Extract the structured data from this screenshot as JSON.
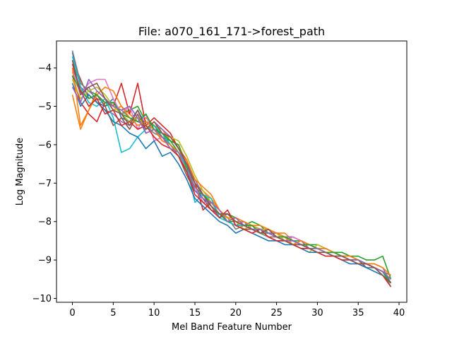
{
  "chart_data": {
    "type": "line",
    "title": "File: a070_161_171->forest_path",
    "xlabel": "Mel Band Feature Number",
    "ylabel": "Log Magnitude",
    "xlim": [
      -1.95,
      40.95
    ],
    "ylim": [
      -10.1,
      -3.3
    ],
    "xticks": [
      0,
      5,
      10,
      15,
      20,
      25,
      30,
      35,
      40
    ],
    "yticks": [
      -10,
      -9,
      -8,
      -7,
      -6,
      -5,
      -4
    ],
    "grid": false,
    "legend": "none",
    "colors": [
      "#1f77b4",
      "#ff7f0e",
      "#2ca02c",
      "#d62728",
      "#9467bd",
      "#8c564b",
      "#e377c2",
      "#7f7f7f",
      "#bcbd22",
      "#17becf"
    ],
    "x": [
      0,
      1,
      2,
      3,
      4,
      5,
      6,
      7,
      8,
      9,
      10,
      11,
      12,
      13,
      14,
      15,
      16,
      17,
      18,
      19,
      20,
      21,
      22,
      23,
      24,
      25,
      26,
      27,
      28,
      29,
      30,
      31,
      32,
      33,
      34,
      35,
      36,
      37,
      38,
      39
    ],
    "series": [
      {
        "values": [
          -3.6,
          -4.5,
          -4.7,
          -4.9,
          -5.0,
          -4.8,
          -5.3,
          -5.4,
          -5.1,
          -5.5,
          -5.6,
          -5.7,
          -6.0,
          -6.2,
          -6.6,
          -7.1,
          -7.4,
          -7.6,
          -7.9,
          -7.8,
          -8.0,
          -8.1,
          -8.1,
          -8.2,
          -8.2,
          -8.3,
          -8.4,
          -8.4,
          -8.5,
          -8.6,
          -8.7,
          -8.7,
          -8.8,
          -8.8,
          -8.9,
          -9.0,
          -9.1,
          -9.2,
          -9.3,
          -9.6
        ]
      },
      {
        "values": [
          -4.7,
          -5.6,
          -5.1,
          -4.6,
          -4.8,
          -5.1,
          -5.0,
          -5.2,
          -5.4,
          -5.3,
          -5.5,
          -5.6,
          -5.9,
          -6.0,
          -6.5,
          -7.0,
          -7.2,
          -7.4,
          -7.7,
          -7.9,
          -8.0,
          -8.0,
          -8.1,
          -8.2,
          -8.2,
          -8.3,
          -8.3,
          -8.5,
          -8.6,
          -8.6,
          -8.7,
          -8.7,
          -8.8,
          -8.9,
          -8.9,
          -9.0,
          -9.1,
          -9.2,
          -9.3,
          -9.5
        ]
      },
      {
        "values": [
          -3.9,
          -4.4,
          -4.6,
          -4.7,
          -5.0,
          -4.9,
          -5.2,
          -5.1,
          -5.0,
          -5.4,
          -5.5,
          -5.8,
          -5.9,
          -6.2,
          -6.7,
          -7.2,
          -7.3,
          -7.5,
          -7.8,
          -7.8,
          -7.9,
          -8.1,
          -8.0,
          -8.1,
          -8.3,
          -8.3,
          -8.4,
          -8.5,
          -8.5,
          -8.6,
          -8.6,
          -8.7,
          -8.8,
          -8.8,
          -8.9,
          -8.9,
          -9.0,
          -9.0,
          -8.9,
          -9.5
        ]
      },
      {
        "values": [
          -4.2,
          -4.9,
          -5.2,
          -5.4,
          -4.9,
          -5.0,
          -4.4,
          -5.2,
          -4.4,
          -5.5,
          -5.3,
          -5.5,
          -5.7,
          -6.1,
          -6.4,
          -7.0,
          -7.7,
          -7.5,
          -7.8,
          -8.0,
          -8.1,
          -8.2,
          -8.1,
          -8.3,
          -8.2,
          -8.4,
          -8.4,
          -8.5,
          -8.6,
          -8.6,
          -8.7,
          -8.8,
          -8.8,
          -8.9,
          -8.9,
          -9.0,
          -9.1,
          -9.2,
          -9.3,
          -9.6
        ]
      },
      {
        "values": [
          -4.0,
          -4.6,
          -4.5,
          -4.9,
          -5.1,
          -5.2,
          -5.4,
          -5.5,
          -5.3,
          -5.6,
          -5.4,
          -5.6,
          -5.8,
          -6.1,
          -6.5,
          -6.9,
          -7.3,
          -7.6,
          -7.9,
          -8.0,
          -8.1,
          -8.0,
          -8.2,
          -8.2,
          -8.3,
          -8.3,
          -8.4,
          -8.4,
          -8.5,
          -8.7,
          -8.7,
          -8.8,
          -8.8,
          -8.9,
          -8.9,
          -9.0,
          -9.1,
          -9.1,
          -9.2,
          -9.6
        ]
      },
      {
        "values": [
          -3.8,
          -4.3,
          -4.8,
          -4.7,
          -5.0,
          -5.5,
          -5.3,
          -5.6,
          -5.2,
          -5.7,
          -5.6,
          -5.9,
          -6.0,
          -6.3,
          -6.8,
          -7.2,
          -7.4,
          -7.7,
          -7.8,
          -8.0,
          -8.1,
          -8.2,
          -8.2,
          -8.3,
          -8.4,
          -8.4,
          -8.5,
          -8.5,
          -8.6,
          -8.6,
          -8.7,
          -8.8,
          -8.8,
          -8.9,
          -9.0,
          -9.0,
          -9.2,
          -9.2,
          -9.3,
          -9.6
        ]
      },
      {
        "values": [
          -4.1,
          -4.7,
          -4.4,
          -4.3,
          -4.3,
          -4.8,
          -5.2,
          -5.0,
          -5.6,
          -5.2,
          -5.9,
          -5.8,
          -6.1,
          -6.3,
          -6.6,
          -7.1,
          -7.5,
          -7.5,
          -7.7,
          -7.9,
          -8.0,
          -8.1,
          -8.2,
          -8.2,
          -8.3,
          -8.4,
          -8.5,
          -8.4,
          -8.5,
          -8.6,
          -8.7,
          -8.8,
          -8.9,
          -8.9,
          -9.0,
          -9.0,
          -9.1,
          -9.2,
          -9.3,
          -9.6
        ]
      },
      {
        "values": [
          -3.55,
          -4.4,
          -4.6,
          -4.8,
          -4.9,
          -5.0,
          -5.1,
          -5.3,
          -5.4,
          -5.5,
          -5.7,
          -5.8,
          -6.0,
          -6.3,
          -6.7,
          -7.1,
          -7.3,
          -7.6,
          -7.8,
          -7.9,
          -8.2,
          -8.1,
          -8.2,
          -8.3,
          -8.4,
          -8.5,
          -8.5,
          -8.6,
          -8.6,
          -8.7,
          -8.8,
          -8.8,
          -8.9,
          -8.9,
          -9.0,
          -9.1,
          -9.2,
          -9.2,
          -9.3,
          -9.4
        ]
      },
      {
        "values": [
          -4.3,
          -4.8,
          -4.6,
          -4.5,
          -4.7,
          -5.0,
          -5.2,
          -5.4,
          -5.3,
          -5.5,
          -5.6,
          -5.8,
          -5.8,
          -5.9,
          -6.3,
          -6.8,
          -7.2,
          -7.5,
          -7.8,
          -7.9,
          -8.0,
          -8.2,
          -8.1,
          -8.2,
          -8.2,
          -8.3,
          -8.5,
          -8.6,
          -8.7,
          -8.8,
          -8.6,
          -8.7,
          -8.8,
          -8.9,
          -8.9,
          -9.0,
          -9.1,
          -9.2,
          -9.3,
          -9.5
        ]
      },
      {
        "values": [
          -3.7,
          -4.5,
          -4.9,
          -5.0,
          -4.8,
          -5.3,
          -6.2,
          -6.1,
          -5.8,
          -5.6,
          -5.5,
          -5.7,
          -6.0,
          -6.2,
          -6.6,
          -7.5,
          -7.3,
          -7.4,
          -7.9,
          -8.0,
          -8.1,
          -8.1,
          -8.2,
          -8.2,
          -8.3,
          -8.4,
          -8.4,
          -8.5,
          -8.6,
          -8.7,
          -8.7,
          -8.8,
          -8.8,
          -8.9,
          -9.0,
          -9.0,
          -9.1,
          -9.2,
          -9.3,
          -9.7
        ]
      },
      {
        "values": [
          -4.4,
          -5.0,
          -4.7,
          -4.9,
          -5.1,
          -5.4,
          -5.5,
          -5.7,
          -5.8,
          -6.1,
          -5.9,
          -6.3,
          -6.2,
          -6.5,
          -6.9,
          -7.4,
          -7.6,
          -7.8,
          -8.0,
          -8.1,
          -8.3,
          -8.2,
          -8.3,
          -8.4,
          -8.5,
          -8.5,
          -8.6,
          -8.6,
          -8.7,
          -8.8,
          -8.8,
          -8.9,
          -8.9,
          -9.0,
          -9.1,
          -9.1,
          -9.2,
          -9.3,
          -9.4,
          -9.6
        ]
      },
      {
        "values": [
          -4.0,
          -5.5,
          -5.1,
          -4.7,
          -4.5,
          -4.6,
          -5.0,
          -5.3,
          -5.5,
          -5.4,
          -5.6,
          -5.9,
          -6.0,
          -6.2,
          -6.4,
          -6.9,
          -7.1,
          -7.3,
          -7.7,
          -7.9,
          -7.9,
          -8.0,
          -8.1,
          -8.1,
          -8.2,
          -8.3,
          -8.4,
          -8.6,
          -8.5,
          -8.6,
          -8.7,
          -8.7,
          -8.8,
          -8.9,
          -8.9,
          -9.0,
          -9.1,
          -9.1,
          -9.2,
          -9.4
        ]
      },
      {
        "values": [
          -4.2,
          -4.6,
          -4.8,
          -4.7,
          -4.9,
          -4.9,
          -5.2,
          -5.3,
          -5.4,
          -5.2,
          -5.6,
          -5.7,
          -5.9,
          -6.0,
          -6.6,
          -7.0,
          -7.3,
          -7.6,
          -7.8,
          -8.0,
          -8.0,
          -8.1,
          -8.1,
          -8.3,
          -8.3,
          -8.4,
          -8.4,
          -8.5,
          -8.6,
          -8.6,
          -8.7,
          -8.8,
          -8.8,
          -8.9,
          -9.0,
          -9.0,
          -9.1,
          -9.2,
          -9.3,
          -9.6
        ]
      },
      {
        "values": [
          -3.9,
          -4.6,
          -5.0,
          -4.8,
          -5.2,
          -5.1,
          -5.5,
          -5.4,
          -5.6,
          -5.5,
          -5.8,
          -6.0,
          -6.1,
          -6.3,
          -6.7,
          -7.3,
          -7.5,
          -7.7,
          -7.9,
          -7.7,
          -8.1,
          -8.2,
          -8.3,
          -8.2,
          -8.4,
          -8.5,
          -8.5,
          -8.6,
          -8.7,
          -8.7,
          -8.8,
          -8.9,
          -8.9,
          -9.0,
          -9.0,
          -9.1,
          -9.1,
          -9.2,
          -9.4,
          -9.7
        ]
      },
      {
        "values": [
          -4.5,
          -4.9,
          -4.3,
          -4.6,
          -4.8,
          -5.0,
          -5.1,
          -5.0,
          -5.3,
          -5.7,
          -5.6,
          -5.8,
          -6.1,
          -6.2,
          -6.5,
          -7.2,
          -7.4,
          -7.5,
          -7.7,
          -8.0,
          -7.9,
          -8.1,
          -8.2,
          -8.2,
          -8.3,
          -8.4,
          -8.5,
          -8.5,
          -8.6,
          -8.7,
          -8.7,
          -8.8,
          -8.9,
          -8.9,
          -9.0,
          -9.0,
          -9.1,
          -9.2,
          -9.3,
          -9.5
        ]
      },
      {
        "values": [
          -3.8,
          -4.7,
          -4.5,
          -4.4,
          -4.8,
          -5.1,
          -5.2,
          -5.5,
          -5.1,
          -5.6,
          -5.4,
          -5.7,
          -5.8,
          -6.1,
          -6.5,
          -7.0,
          -7.3,
          -7.6,
          -7.8,
          -7.8,
          -8.0,
          -8.1,
          -8.2,
          -8.3,
          -8.2,
          -8.4,
          -8.5,
          -8.6,
          -8.6,
          -8.7,
          -8.8,
          -8.8,
          -8.9,
          -8.9,
          -9.0,
          -9.1,
          -9.1,
          -9.2,
          -9.4,
          -9.6
        ]
      }
    ]
  }
}
